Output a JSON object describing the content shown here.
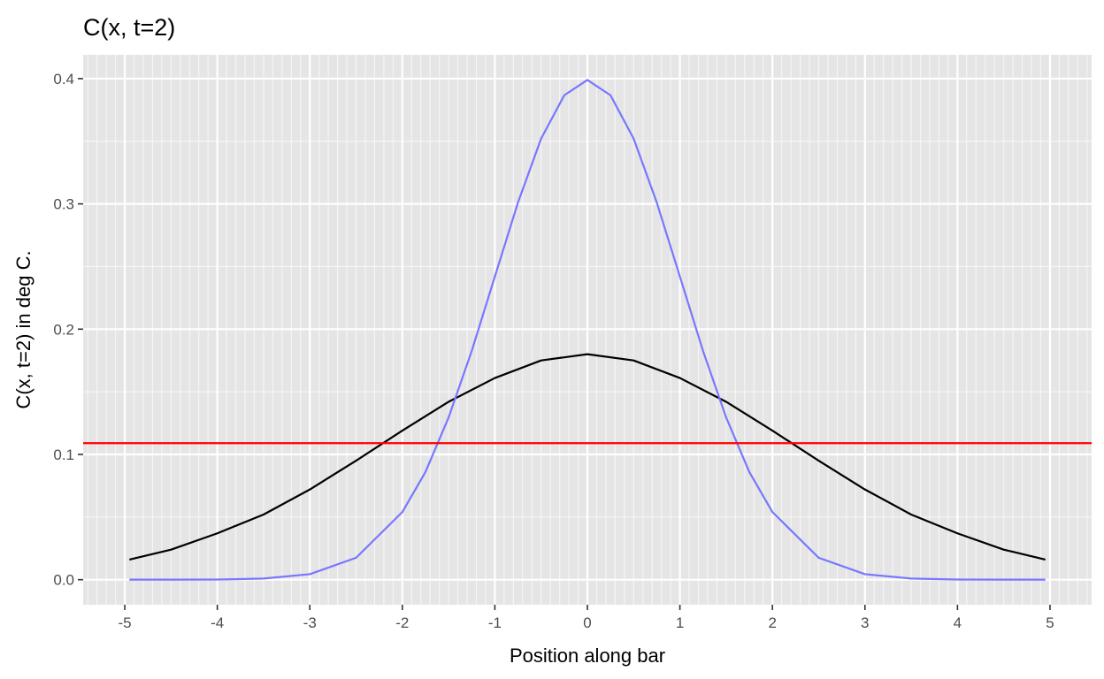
{
  "chart_data": {
    "type": "line",
    "title": "C(x, t=2)",
    "xlabel": "Position along bar",
    "ylabel": "C(x, t=2) in deg C.",
    "xlim": [
      -5.45,
      5.45
    ],
    "ylim": [
      -0.02,
      0.419
    ],
    "x_ticks": [
      -5,
      -4,
      -3,
      -2,
      -1,
      0,
      1,
      2,
      3,
      4,
      5
    ],
    "x_tick_labels": [
      "-5",
      "-4",
      "-3",
      "-2",
      "-1",
      "0",
      "1",
      "2",
      "3",
      "4",
      "5"
    ],
    "y_ticks": [
      0.0,
      0.1,
      0.2,
      0.3,
      0.4
    ],
    "y_tick_labels": [
      "0.0",
      "0.1",
      "0.2",
      "0.3",
      "0.4"
    ],
    "x_minor_grid_step": 0.1,
    "grid": true,
    "panel_background": "#e5e5e5",
    "series": [
      {
        "color": "#000000",
        "x": [
          -4.95,
          -4.5,
          -4.0,
          -3.5,
          -3.0,
          -2.5,
          -2.0,
          -1.5,
          -1.0,
          -0.5,
          0.0,
          0.5,
          1.0,
          1.5,
          2.0,
          2.5,
          3.0,
          3.5,
          4.0,
          4.5,
          4.95
        ],
        "y": [
          0.016,
          0.024,
          0.037,
          0.052,
          0.072,
          0.095,
          0.119,
          0.142,
          0.161,
          0.175,
          0.18,
          0.175,
          0.161,
          0.142,
          0.119,
          0.095,
          0.072,
          0.052,
          0.037,
          0.024,
          0.016
        ]
      },
      {
        "color": "#7777ff",
        "x": [
          -4.95,
          -4.5,
          -4.0,
          -3.5,
          -3.0,
          -2.5,
          -2.0,
          -1.75,
          -1.5,
          -1.25,
          -1.0,
          -0.75,
          -0.5,
          -0.25,
          0.0,
          0.25,
          0.5,
          0.75,
          1.0,
          1.25,
          1.5,
          1.75,
          2.0,
          2.5,
          3.0,
          3.5,
          4.0,
          4.5,
          4.95
        ],
        "y": [
          0.0,
          0.0,
          0.0001,
          0.0009,
          0.0044,
          0.0175,
          0.054,
          0.086,
          0.1295,
          0.1826,
          0.242,
          0.3011,
          0.3521,
          0.3867,
          0.3989,
          0.3867,
          0.3521,
          0.3011,
          0.242,
          0.1826,
          0.1295,
          0.086,
          0.054,
          0.0175,
          0.0044,
          0.0009,
          0.0001,
          0.0,
          0.0
        ]
      }
    ],
    "hlines": [
      {
        "y": 0.109,
        "color": "#ff0000"
      }
    ]
  }
}
